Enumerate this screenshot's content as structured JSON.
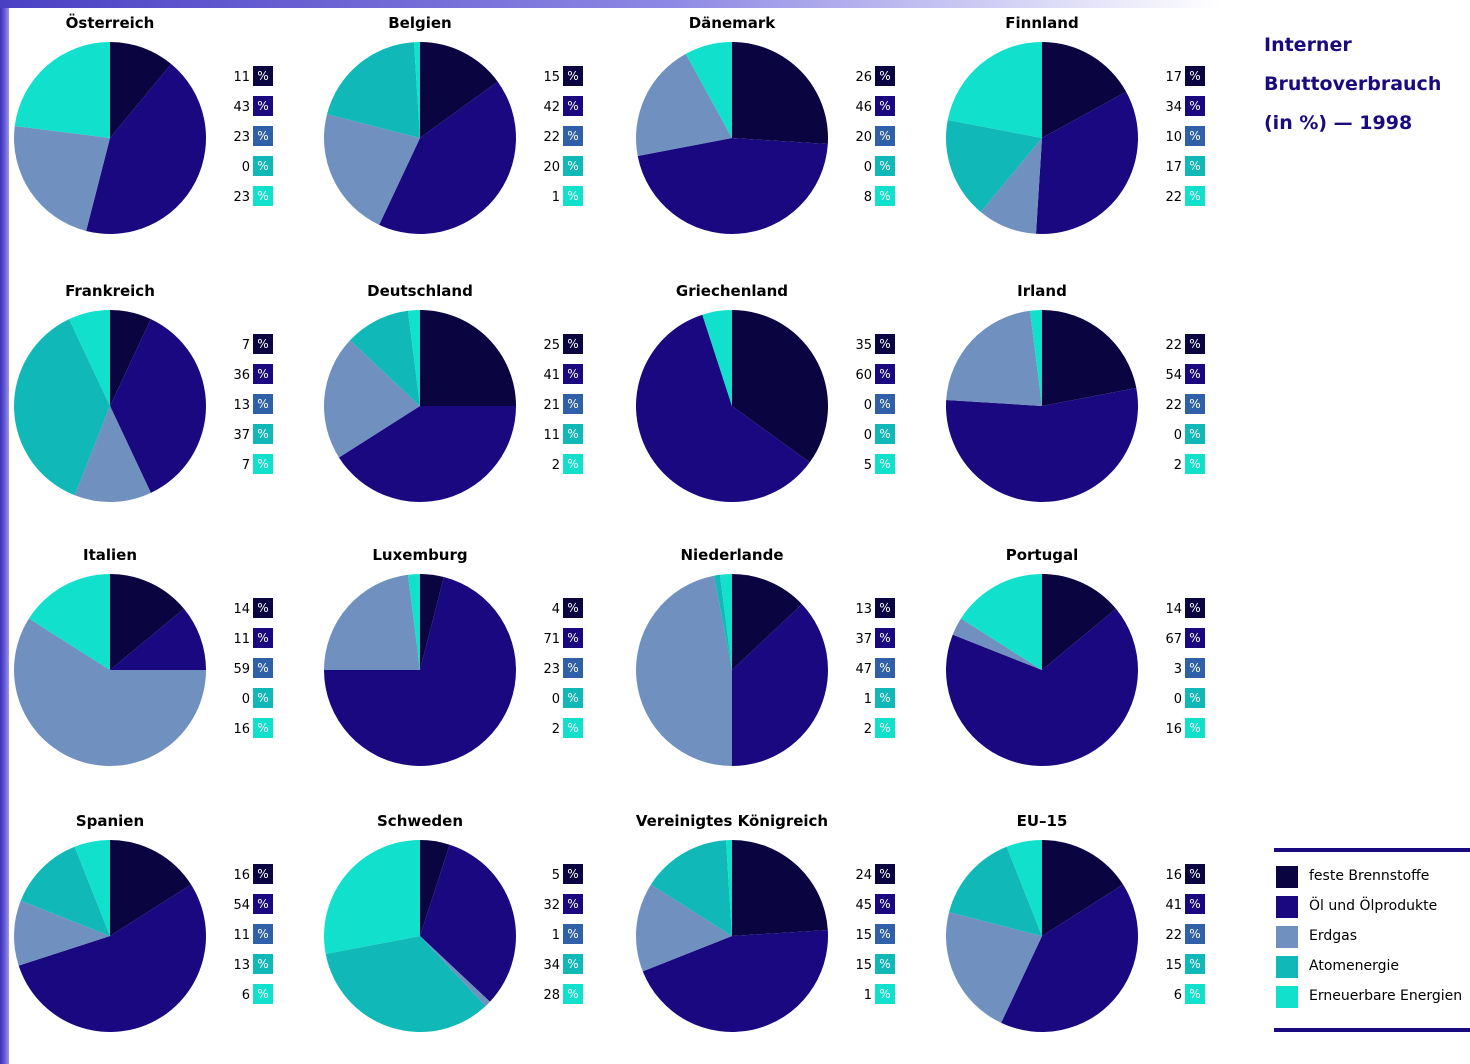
{
  "title_lines": [
    "Interner",
    "Bruttoverbrauch",
    "(in %) — 1998"
  ],
  "legend": [
    {
      "label": "feste Brennstoffe",
      "color": "#0a0440"
    },
    {
      "label": "Öl und Ölprodukte",
      "color": "#1a0880"
    },
    {
      "label": "Erdgas",
      "color": "#7090c0"
    },
    {
      "label": "Atomenergie",
      "color": "#10b8b8"
    },
    {
      "label": "Erneuerbare Energien",
      "color": "#10e0cc"
    }
  ],
  "percent_symbol": "%",
  "chart_data": [
    {
      "type": "pie",
      "title": "Österreich",
      "values": [
        11,
        43,
        23,
        0,
        23
      ]
    },
    {
      "type": "pie",
      "title": "Belgien",
      "values": [
        15,
        42,
        22,
        20,
        1
      ]
    },
    {
      "type": "pie",
      "title": "Dänemark",
      "values": [
        26,
        46,
        20,
        0,
        8
      ]
    },
    {
      "type": "pie",
      "title": "Finnland",
      "values": [
        17,
        34,
        10,
        17,
        22
      ]
    },
    {
      "type": "pie",
      "title": "Frankreich",
      "values": [
        7,
        36,
        13,
        37,
        7
      ]
    },
    {
      "type": "pie",
      "title": "Deutschland",
      "values": [
        25,
        41,
        21,
        11,
        2
      ]
    },
    {
      "type": "pie",
      "title": "Griechenland",
      "values": [
        35,
        60,
        0,
        0,
        5
      ]
    },
    {
      "type": "pie",
      "title": "Irland",
      "values": [
        22,
        54,
        22,
        0,
        2
      ]
    },
    {
      "type": "pie",
      "title": "Italien",
      "values": [
        14,
        11,
        59,
        0,
        16
      ]
    },
    {
      "type": "pie",
      "title": "Luxemburg",
      "values": [
        4,
        71,
        23,
        0,
        2
      ]
    },
    {
      "type": "pie",
      "title": "Niederlande",
      "values": [
        13,
        37,
        47,
        1,
        2
      ]
    },
    {
      "type": "pie",
      "title": "Portugal",
      "values": [
        14,
        67,
        3,
        0,
        16
      ]
    },
    {
      "type": "pie",
      "title": "Spanien",
      "values": [
        16,
        54,
        11,
        13,
        6
      ]
    },
    {
      "type": "pie",
      "title": "Schweden",
      "values": [
        5,
        32,
        1,
        34,
        28
      ]
    },
    {
      "type": "pie",
      "title": "Vereinigtes Königreich",
      "values": [
        24,
        45,
        15,
        15,
        1
      ]
    },
    {
      "type": "pie",
      "title": "EU–15",
      "values": [
        16,
        41,
        22,
        15,
        6
      ]
    }
  ]
}
